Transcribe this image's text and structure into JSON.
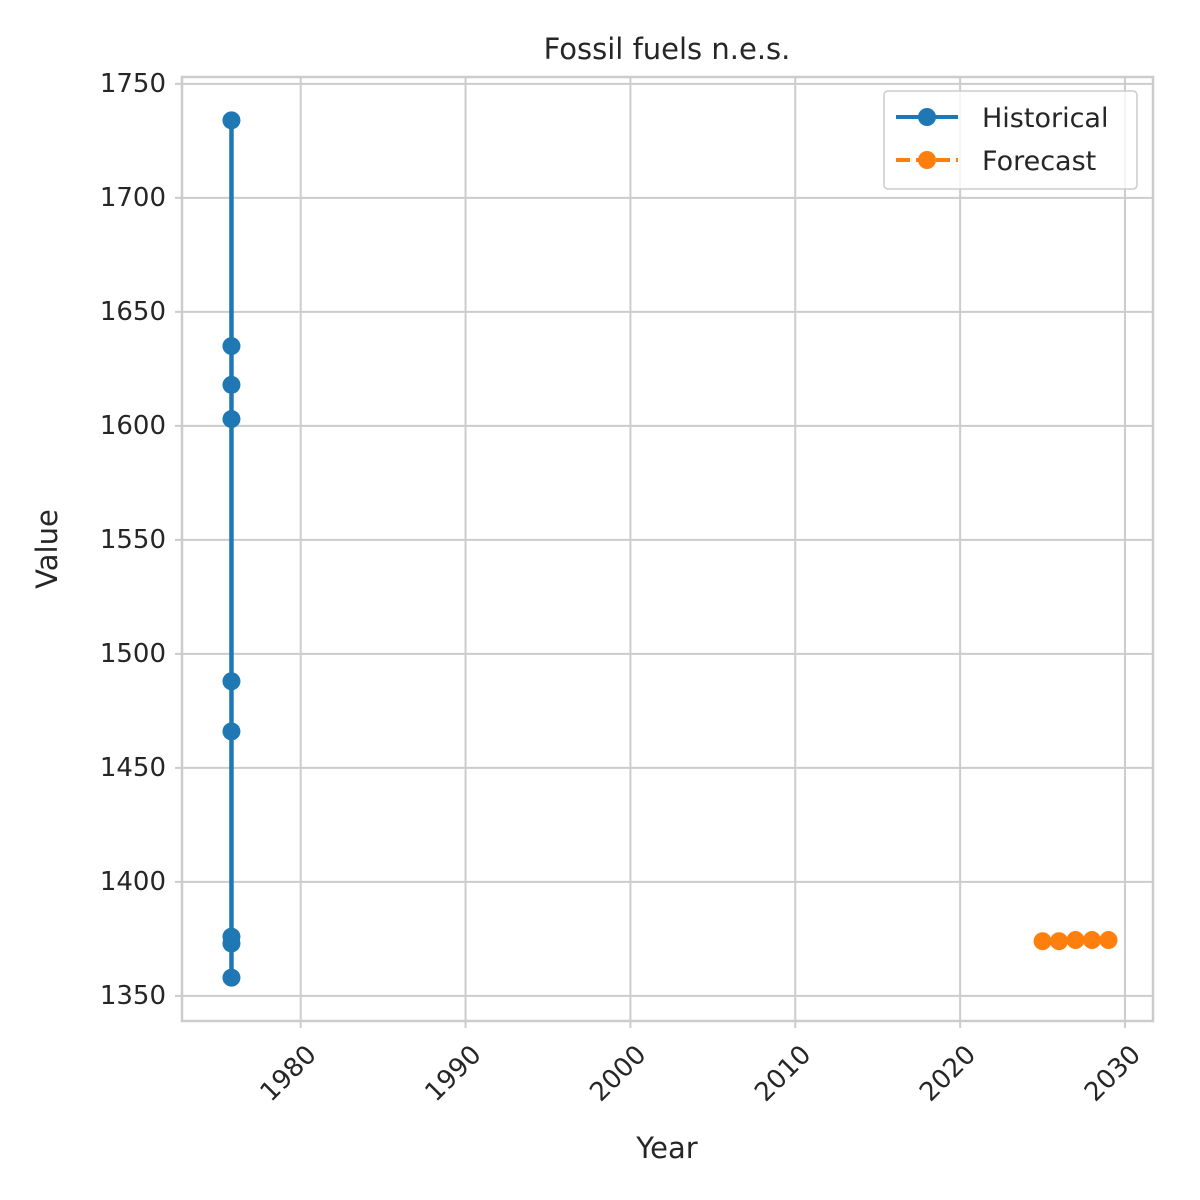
{
  "chart_data": {
    "type": "line",
    "title": "Fossil fuels n.e.s.",
    "xlabel": "Year",
    "ylabel": "Value",
    "xlim": [
      1972.8,
      2031.7
    ],
    "ylim": [
      1339,
      1753
    ],
    "x_ticks": [
      1980,
      1990,
      2000,
      2010,
      2020,
      2030
    ],
    "y_ticks": [
      1350,
      1400,
      1450,
      1500,
      1550,
      1600,
      1650,
      1700,
      1750
    ],
    "grid": true,
    "legend_position": "top-right",
    "series": [
      {
        "name": "Historical",
        "color": "#1f77b4",
        "line_style": "solid",
        "marker": "circle",
        "points": [
          {
            "x": 1975.8,
            "y": 1734
          },
          {
            "x": 1975.8,
            "y": 1635
          },
          {
            "x": 1975.8,
            "y": 1618
          },
          {
            "x": 1975.8,
            "y": 1603
          },
          {
            "x": 1975.8,
            "y": 1488
          },
          {
            "x": 1975.8,
            "y": 1466
          },
          {
            "x": 1975.8,
            "y": 1376
          },
          {
            "x": 1975.8,
            "y": 1373
          },
          {
            "x": 1975.8,
            "y": 1358
          }
        ]
      },
      {
        "name": "Forecast",
        "color": "#ff7f0e",
        "line_style": "dashed",
        "marker": "circle",
        "points": [
          {
            "x": 2025,
            "y": 1374
          },
          {
            "x": 2026,
            "y": 1374
          },
          {
            "x": 2027,
            "y": 1374.5
          },
          {
            "x": 2028,
            "y": 1374.5
          },
          {
            "x": 2029,
            "y": 1374.5
          }
        ]
      }
    ]
  }
}
